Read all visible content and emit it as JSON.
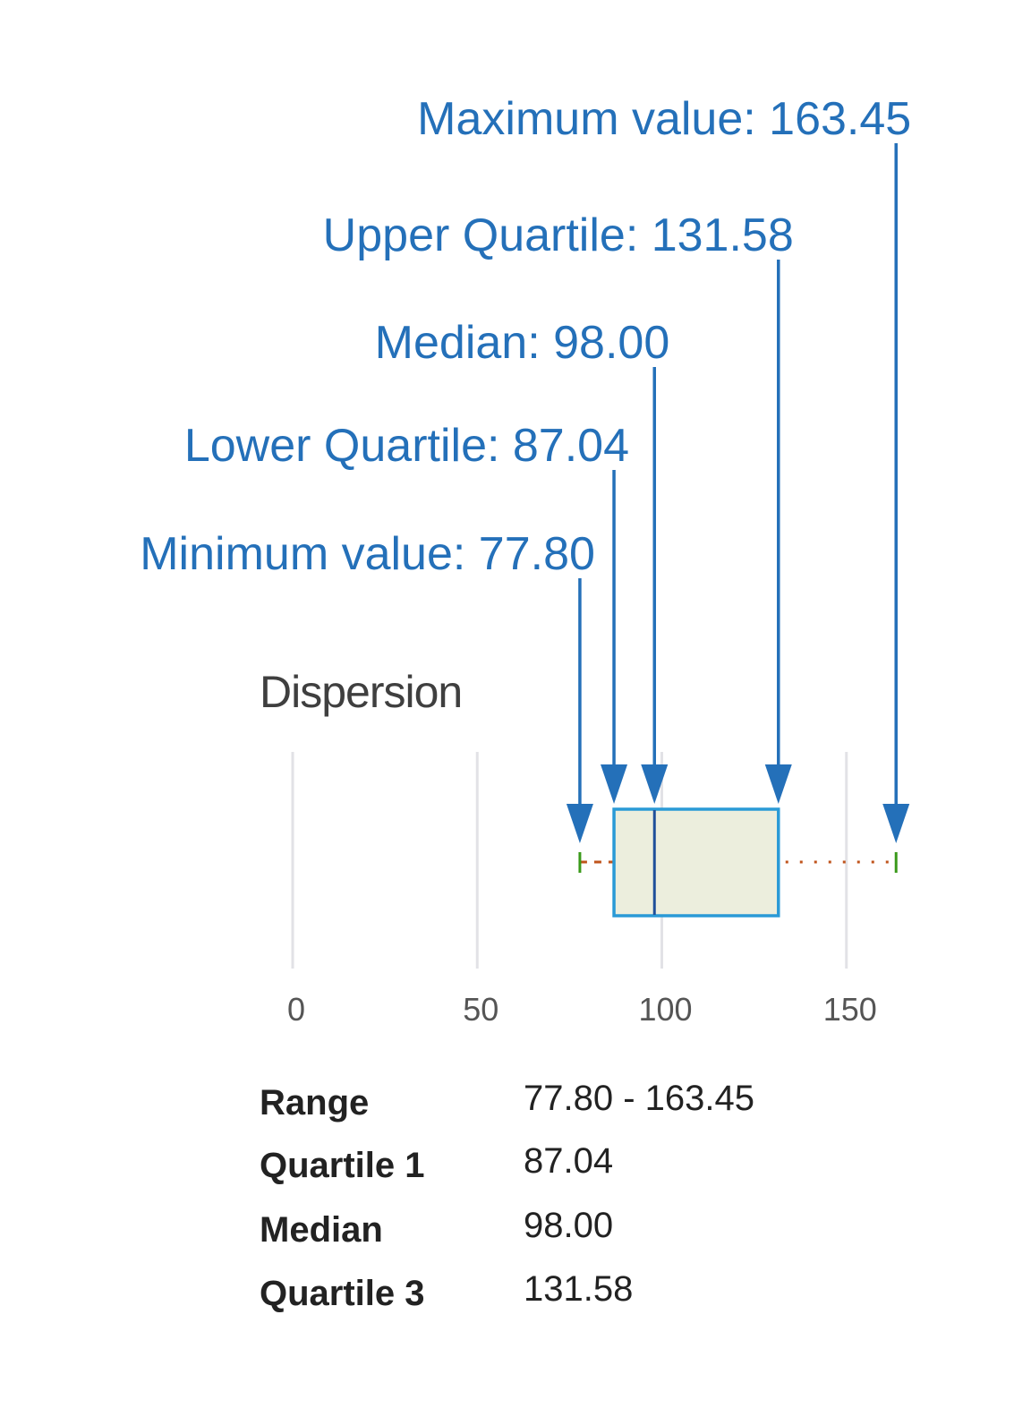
{
  "chart_data": {
    "type": "box",
    "title": "Dispersion",
    "xlim": [
      0,
      170
    ],
    "xticks": [
      "0",
      "50",
      "100",
      "150"
    ],
    "grid": true,
    "stats": {
      "min": 77.8,
      "q1": 87.04,
      "median": 98.0,
      "q3": 131.58,
      "max": 163.45
    },
    "annotations": [
      {
        "key": "max",
        "text": "Maximum value: 163.45"
      },
      {
        "key": "q3",
        "text": "Upper Quartile: 131.58"
      },
      {
        "key": "median",
        "text": "Median: 98.00"
      },
      {
        "key": "q1",
        "text": "Lower Quartile: 87.04"
      },
      {
        "key": "min",
        "text": "Minimum value: 77.80"
      }
    ],
    "summary_table": [
      {
        "label": "Range",
        "value": "77.80 - 163.45"
      },
      {
        "label": "Quartile 1",
        "value": "87.04"
      },
      {
        "label": "Median",
        "value": "98.00"
      },
      {
        "label": "Quartile 3",
        "value": "131.58"
      }
    ],
    "colors": {
      "annotation": "#2470b9",
      "box_fill": "#eceedd",
      "box_stroke": "#2a9ad6",
      "median_line": "#1f4f9a",
      "whisker": "#c0541c",
      "whisker_cap": "#3a9a1a",
      "grid": "#e2e2e6"
    }
  }
}
